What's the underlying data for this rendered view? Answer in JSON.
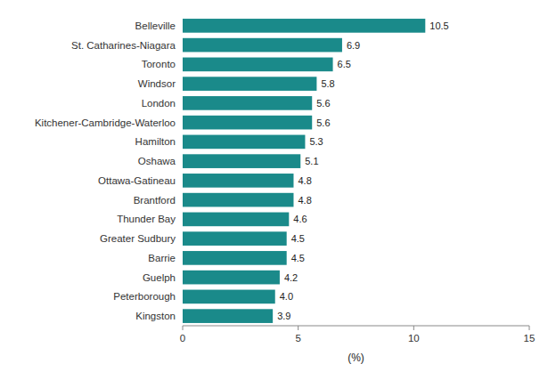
{
  "chart_data": {
    "type": "bar",
    "orientation": "horizontal",
    "categories": [
      "Kingston",
      "Peterborough",
      "Guelph",
      "Barrie",
      "Greater Sudbury",
      "Thunder Bay",
      "Brantford",
      "Ottawa-Gatineau",
      "Oshawa",
      "Hamilton",
      "Kitchener-Cambridge-Waterloo",
      "London",
      "Windsor",
      "Toronto",
      "St. Catharines-Niagara",
      "Belleville"
    ],
    "values": [
      3.9,
      4.0,
      4.2,
      4.5,
      4.5,
      4.6,
      4.8,
      4.8,
      5.1,
      5.3,
      5.6,
      5.6,
      5.8,
      6.5,
      6.9,
      10.5
    ],
    "value_labels": [
      "3.9",
      "4.0",
      "4.2",
      "4.5",
      "4.5",
      "4.6",
      "4.8",
      "4.8",
      "5.1",
      "5.3",
      "5.6",
      "5.6",
      "5.8",
      "6.5",
      "6.9",
      "10.5"
    ],
    "color": "#1a8a8a",
    "xlabel": "(%)",
    "xlim": [
      0,
      15
    ],
    "xticks": [
      0,
      5,
      10,
      15
    ],
    "data_labels": true,
    "grid": false
  }
}
